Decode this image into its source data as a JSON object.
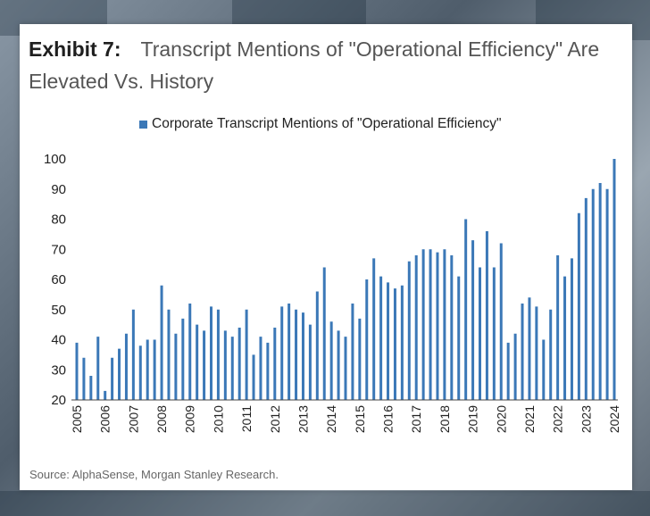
{
  "header": {
    "exhibit_label": "Exhibit 7:",
    "title": "Transcript Mentions of \"Operational Efficiency\" Are Elevated Vs. History"
  },
  "source": "Source: AlphaSense, Morgan Stanley Research.",
  "colors": {
    "bar": "#3b78b7",
    "axis": "#444444"
  },
  "chart_data": {
    "type": "bar",
    "title": "",
    "xlabel": "",
    "ylabel": "",
    "legend": "top",
    "grid": false,
    "ylim": [
      20,
      100
    ],
    "yticks": [
      20,
      30,
      40,
      50,
      60,
      70,
      80,
      90,
      100
    ],
    "x_tick_labels": [
      "2005",
      "2006",
      "2007",
      "2008",
      "2009",
      "2010",
      "2011",
      "2012",
      "2013",
      "2014",
      "2015",
      "2016",
      "2017",
      "2018",
      "2019",
      "2020",
      "2021",
      "2022",
      "2023",
      "2024"
    ],
    "series": [
      {
        "name": "Corporate Transcript Mentions of \"Operational Efficiency\"",
        "values": [
          39,
          34,
          28,
          41,
          23,
          34,
          37,
          42,
          50,
          38,
          40,
          40,
          58,
          50,
          42,
          47,
          52,
          45,
          43,
          51,
          50,
          43,
          41,
          44,
          50,
          35,
          41,
          39,
          44,
          51,
          52,
          50,
          49,
          45,
          56,
          64,
          46,
          43,
          41,
          52,
          47,
          60,
          67,
          61,
          59,
          57,
          58,
          66,
          68,
          70,
          70,
          69,
          70,
          68,
          61,
          80,
          73,
          64,
          76,
          64,
          72,
          39,
          42,
          52,
          54,
          51,
          40,
          50,
          68,
          61,
          67,
          82,
          87,
          90,
          92,
          90,
          100
        ]
      }
    ]
  }
}
